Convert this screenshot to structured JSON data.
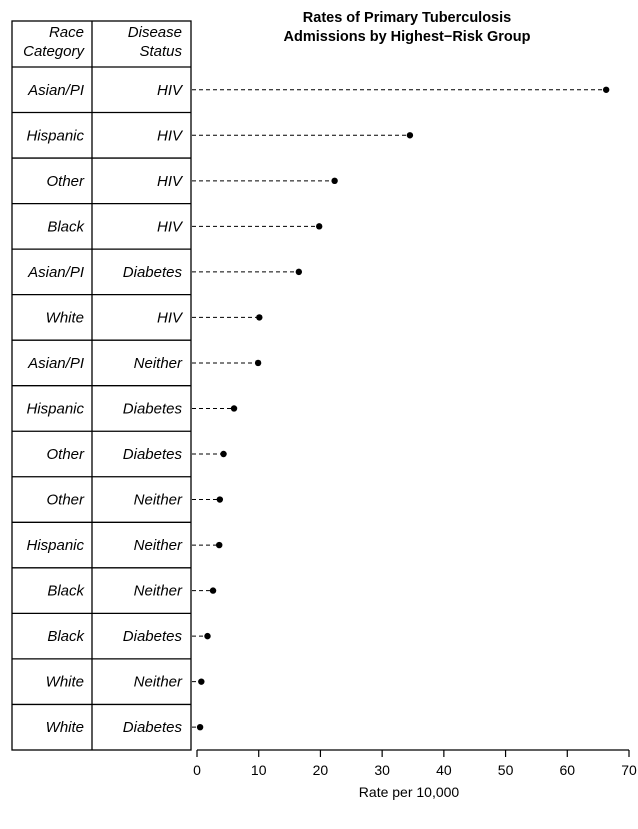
{
  "chart_data": {
    "type": "scatter",
    "subtype": "dot-plot",
    "title_lines": [
      "Rates of Primary Tuberculosis",
      "Admissions by Highest−Risk Group"
    ],
    "table_headers": {
      "race": [
        "Race",
        "Category"
      ],
      "disease": [
        "Disease",
        "Status"
      ]
    },
    "xlabel": "Rate per 10,000",
    "xlim": [
      0,
      70
    ],
    "xticks": [
      0,
      10,
      20,
      30,
      40,
      50,
      60,
      70
    ],
    "grid": false,
    "rows": [
      {
        "race": "Asian/PI",
        "status": "HIV",
        "value": 66.3
      },
      {
        "race": "Hispanic",
        "status": "HIV",
        "value": 34.5
      },
      {
        "race": "Other",
        "status": "HIV",
        "value": 22.3
      },
      {
        "race": "Black",
        "status": "HIV",
        "value": 19.8
      },
      {
        "race": "Asian/PI",
        "status": "Diabetes",
        "value": 16.5
      },
      {
        "race": "White",
        "status": "HIV",
        "value": 10.1
      },
      {
        "race": "Asian/PI",
        "status": "Neither",
        "value": 9.9
      },
      {
        "race": "Hispanic",
        "status": "Diabetes",
        "value": 6.0
      },
      {
        "race": "Other",
        "status": "Diabetes",
        "value": 4.3
      },
      {
        "race": "Other",
        "status": "Neither",
        "value": 3.7
      },
      {
        "race": "Hispanic",
        "status": "Neither",
        "value": 3.6
      },
      {
        "race": "Black",
        "status": "Neither",
        "value": 2.6
      },
      {
        "race": "Black",
        "status": "Diabetes",
        "value": 1.7
      },
      {
        "race": "White",
        "status": "Neither",
        "value": 0.7
      },
      {
        "race": "White",
        "status": "Diabetes",
        "value": 0.5
      }
    ]
  }
}
